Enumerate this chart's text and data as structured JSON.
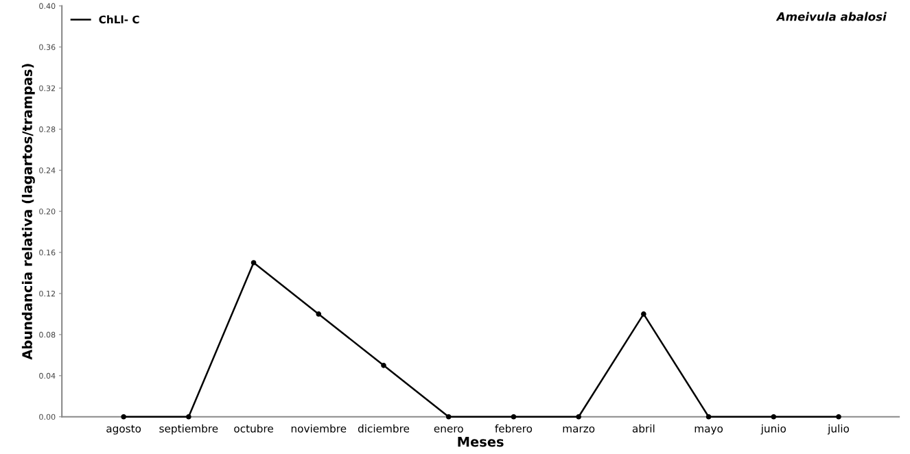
{
  "chart_data": {
    "type": "line",
    "title": "Ameivula abalosi",
    "xlabel": "Meses",
    "ylabel": "Abundancia relativa (lagartos/trampas)",
    "categories": [
      "agosto",
      "septiembre",
      "octubre",
      "noviembre",
      "diciembre",
      "enero",
      "febrero",
      "marzo",
      "abril",
      "mayo",
      "junio",
      "julio"
    ],
    "series": [
      {
        "name": "ChLl- C",
        "color": "#000000",
        "values": [
          0,
          0,
          0.15,
          0.1,
          0.05,
          0,
          0,
          0,
          0.1,
          0,
          0,
          0
        ]
      }
    ],
    "ylim": [
      0,
      0.4
    ],
    "yticks": [
      {
        "value": 0,
        "label": "0.00"
      },
      {
        "value": 0.04,
        "label": "0.04"
      },
      {
        "value": 0.08,
        "label": "0.08"
      },
      {
        "value": 0.12,
        "label": "0.12"
      },
      {
        "value": 0.16,
        "label": "0.16"
      },
      {
        "value": 0.2,
        "label": "0.20"
      },
      {
        "value": 0.24,
        "label": "0.24"
      },
      {
        "value": 0.28,
        "label": "0.28"
      },
      {
        "value": 0.32,
        "label": "0.32"
      },
      {
        "value": 0.36,
        "label": "0.36"
      },
      {
        "value": 0.4,
        "label": "0.40"
      }
    ],
    "grid": false,
    "legend": "top left",
    "marker": "circle",
    "line_style": "solid"
  }
}
